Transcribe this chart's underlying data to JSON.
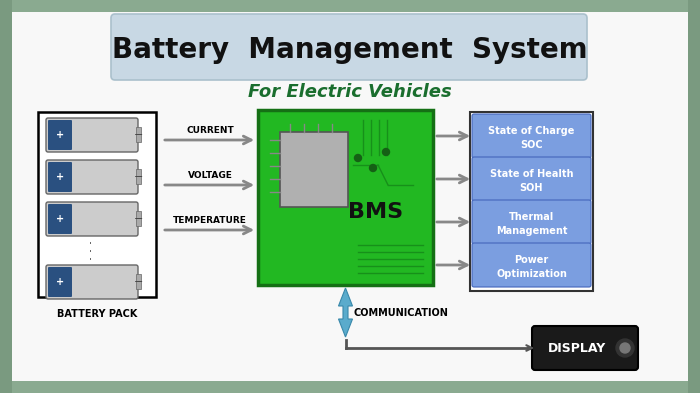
{
  "title": "Battery  Management  System",
  "subtitle": "For Electric Vehicles",
  "bg_color": "#f8f8f8",
  "outer_bg_top": "#8aaa90",
  "outer_bg_side": "#7a9a80",
  "title_bg": "#c8d8e4",
  "title_color": "#111111",
  "subtitle_color": "#1a6e2e",
  "bms_green": "#22b822",
  "bms_border": "#157015",
  "arrow_color": "#888888",
  "input_labels": [
    "CURRENT",
    "VOLTAGE",
    "TEMPERATURE"
  ],
  "output_labels": [
    [
      "State of Charge",
      "SOC"
    ],
    [
      "State of Health",
      "SOH"
    ],
    [
      "Thermal",
      "Management"
    ],
    [
      "Power",
      "Optimization"
    ]
  ],
  "output_box_color": "#7b9ee0",
  "battery_pack_label": "BATTERY PACK",
  "communication_label": "COMMUNICATION",
  "display_label": "DISPLAY",
  "display_bg": "#1a1a1a",
  "display_text_color": "#ffffff",
  "comm_arrow_color": "#5aabcc",
  "fig_w": 7.0,
  "fig_h": 3.93,
  "dpi": 100
}
